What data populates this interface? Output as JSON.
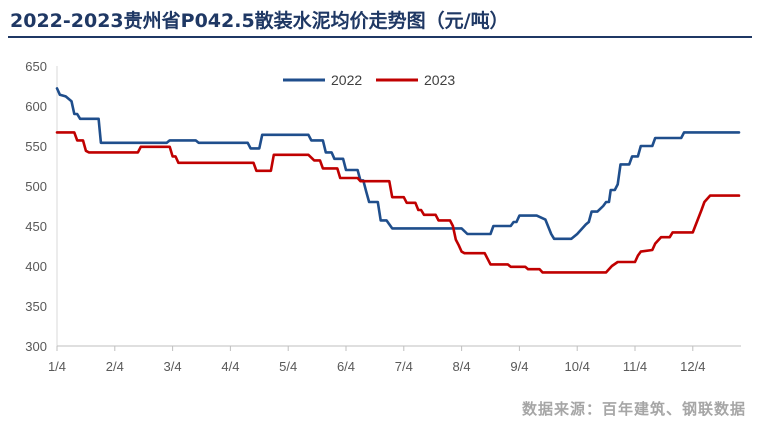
{
  "title": "2022-2023贵州省P042.5散装水泥均价走势图（元/吨）",
  "source": "数据来源：百年建筑、钢联数据",
  "chart_data": {
    "type": "line",
    "title": "2022-2023贵州省P042.5散装水泥均价走势图（元/吨）",
    "xlabel": "",
    "ylabel": "",
    "ylim": [
      300,
      650
    ],
    "yticks": [
      300,
      350,
      400,
      450,
      500,
      550,
      600,
      650
    ],
    "x_tick_labels": [
      "1/4",
      "2/4",
      "3/4",
      "4/4",
      "5/4",
      "6/4",
      "7/4",
      "8/4",
      "9/4",
      "10/4",
      "11/4",
      "12/4"
    ],
    "x_unit": "month index (1/4 = 0, 12/4 = 11)",
    "grid": false,
    "legend_position": "top-center",
    "series": [
      {
        "name": "2022",
        "color": "#1f4e8c",
        "points": [
          [
            0.0,
            622
          ],
          [
            0.05,
            614
          ],
          [
            0.15,
            612
          ],
          [
            0.25,
            606
          ],
          [
            0.3,
            590
          ],
          [
            0.35,
            590
          ],
          [
            0.4,
            584
          ],
          [
            0.6,
            584
          ],
          [
            0.72,
            584
          ],
          [
            0.76,
            554
          ],
          [
            1.0,
            554
          ],
          [
            1.5,
            554
          ],
          [
            1.9,
            554
          ],
          [
            1.95,
            557
          ],
          [
            2.4,
            557
          ],
          [
            2.45,
            554
          ],
          [
            3.0,
            554
          ],
          [
            3.3,
            554
          ],
          [
            3.35,
            547
          ],
          [
            3.5,
            547
          ],
          [
            3.55,
            564
          ],
          [
            4.0,
            564
          ],
          [
            4.35,
            564
          ],
          [
            4.4,
            557
          ],
          [
            4.6,
            557
          ],
          [
            4.65,
            542
          ],
          [
            4.75,
            542
          ],
          [
            4.8,
            534
          ],
          [
            4.95,
            534
          ],
          [
            5.0,
            520
          ],
          [
            5.2,
            520
          ],
          [
            5.25,
            507
          ],
          [
            5.3,
            507
          ],
          [
            5.35,
            493
          ],
          [
            5.4,
            480
          ],
          [
            5.55,
            480
          ],
          [
            5.6,
            457
          ],
          [
            5.7,
            457
          ],
          [
            5.8,
            447
          ],
          [
            6.0,
            447
          ],
          [
            7.0,
            447
          ],
          [
            7.1,
            440
          ],
          [
            7.5,
            440
          ],
          [
            7.55,
            450
          ],
          [
            7.85,
            450
          ],
          [
            7.9,
            455
          ],
          [
            7.95,
            455
          ],
          [
            8.0,
            463
          ],
          [
            8.3,
            463
          ],
          [
            8.45,
            458
          ],
          [
            8.55,
            440
          ],
          [
            8.6,
            434
          ],
          [
            8.9,
            434
          ],
          [
            9.0,
            440
          ],
          [
            9.15,
            452
          ],
          [
            9.2,
            455
          ],
          [
            9.25,
            468
          ],
          [
            9.35,
            468
          ],
          [
            9.45,
            475
          ],
          [
            9.5,
            480
          ],
          [
            9.55,
            480
          ],
          [
            9.58,
            495
          ],
          [
            9.65,
            495
          ],
          [
            9.7,
            502
          ],
          [
            9.75,
            527
          ],
          [
            9.9,
            527
          ],
          [
            9.95,
            537
          ],
          [
            10.0,
            537
          ],
          [
            10.05,
            537
          ],
          [
            10.1,
            550
          ],
          [
            10.3,
            550
          ],
          [
            10.35,
            560
          ],
          [
            10.8,
            560
          ],
          [
            10.85,
            567
          ],
          [
            11.8,
            567
          ]
        ]
      },
      {
        "name": "2023",
        "color": "#c00000",
        "points": [
          [
            0.0,
            567
          ],
          [
            0.3,
            567
          ],
          [
            0.35,
            557
          ],
          [
            0.45,
            557
          ],
          [
            0.5,
            544
          ],
          [
            0.55,
            542
          ],
          [
            1.0,
            542
          ],
          [
            1.4,
            542
          ],
          [
            1.45,
            549
          ],
          [
            1.95,
            549
          ],
          [
            2.0,
            537
          ],
          [
            2.05,
            537
          ],
          [
            2.1,
            529
          ],
          [
            3.0,
            529
          ],
          [
            3.4,
            529
          ],
          [
            3.45,
            519
          ],
          [
            3.7,
            519
          ],
          [
            3.75,
            539
          ],
          [
            4.0,
            539
          ],
          [
            4.35,
            539
          ],
          [
            4.45,
            532
          ],
          [
            4.55,
            532
          ],
          [
            4.6,
            522
          ],
          [
            4.85,
            522
          ],
          [
            4.9,
            510
          ],
          [
            5.2,
            510
          ],
          [
            5.25,
            506
          ],
          [
            5.75,
            506
          ],
          [
            5.8,
            486
          ],
          [
            6.0,
            486
          ],
          [
            6.05,
            479
          ],
          [
            6.2,
            479
          ],
          [
            6.25,
            470
          ],
          [
            6.3,
            470
          ],
          [
            6.35,
            464
          ],
          [
            6.55,
            464
          ],
          [
            6.6,
            457
          ],
          [
            6.8,
            457
          ],
          [
            6.85,
            450
          ],
          [
            6.9,
            433
          ],
          [
            6.95,
            426
          ],
          [
            7.0,
            418
          ],
          [
            7.05,
            416
          ],
          [
            7.4,
            416
          ],
          [
            7.45,
            409
          ],
          [
            7.5,
            402
          ],
          [
            7.8,
            402
          ],
          [
            7.85,
            399
          ],
          [
            8.1,
            399
          ],
          [
            8.15,
            396
          ],
          [
            8.35,
            396
          ],
          [
            8.4,
            392
          ],
          [
            9.0,
            392
          ],
          [
            9.5,
            392
          ],
          [
            9.6,
            400
          ],
          [
            9.7,
            405
          ],
          [
            10.0,
            405
          ],
          [
            10.05,
            413
          ],
          [
            10.1,
            418
          ],
          [
            10.3,
            420
          ],
          [
            10.35,
            428
          ],
          [
            10.45,
            436
          ],
          [
            10.6,
            436
          ],
          [
            10.65,
            442
          ],
          [
            11.0,
            442
          ],
          [
            11.15,
            470
          ],
          [
            11.2,
            480
          ],
          [
            11.3,
            488
          ],
          [
            11.8,
            488
          ]
        ]
      }
    ]
  }
}
